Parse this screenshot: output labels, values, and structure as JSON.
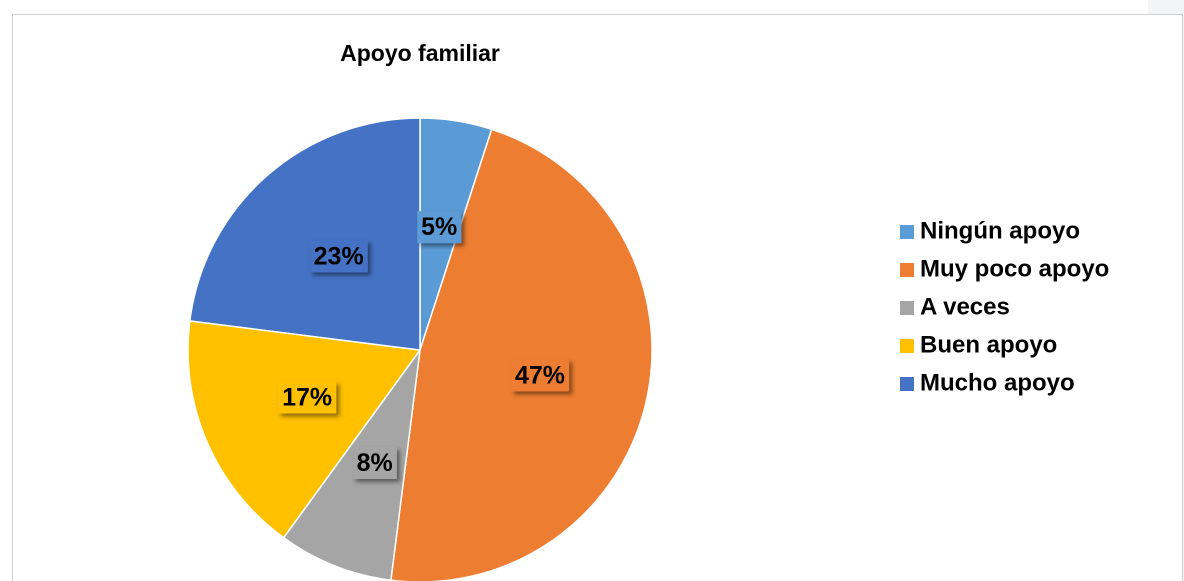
{
  "chart_data": {
    "type": "pie",
    "title": "Apoyo familiar",
    "categories": [
      "Ningún apoyo",
      "Muy poco apoyo",
      "A veces",
      "Buen apoyo",
      "Mucho apoyo"
    ],
    "values": [
      5,
      47,
      8,
      17,
      23
    ],
    "value_labels": [
      "5%",
      "47%",
      "8%",
      "17%",
      "23%"
    ],
    "colors": [
      "#5b9bd5",
      "#ed7d31",
      "#a5a5a5",
      "#ffc000",
      "#4472c4"
    ],
    "legend": "right"
  }
}
